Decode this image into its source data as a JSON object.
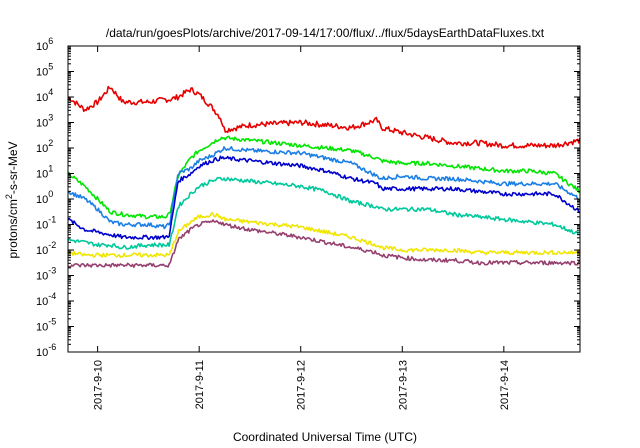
{
  "chart_data": {
    "type": "line",
    "title": "/data/run/goesPlots/archive/2017-09-14/17:00/flux/../flux/5daysEarthDataFluxes.txt",
    "xlabel": "Coordinated Universal Time (UTC)",
    "ylabel": {
      "prefix": "protons/cm",
      "superscript": "2",
      "suffix": "-s-sr-MeV"
    },
    "yscale": "log",
    "ylim_exponents": [
      -6,
      6
    ],
    "y_ticks": [
      {
        "base": "10",
        "exp": "6"
      },
      {
        "base": "10",
        "exp": "5"
      },
      {
        "base": "10",
        "exp": "4"
      },
      {
        "base": "10",
        "exp": "3"
      },
      {
        "base": "10",
        "exp": "2"
      },
      {
        "base": "10",
        "exp": "1"
      },
      {
        "base": "10",
        "exp": "0"
      },
      {
        "base": "10",
        "exp": "-1"
      },
      {
        "base": "10",
        "exp": "-2"
      },
      {
        "base": "10",
        "exp": "-3"
      },
      {
        "base": "10",
        "exp": "-4"
      },
      {
        "base": "10",
        "exp": "-5"
      },
      {
        "base": "10",
        "exp": "-6"
      }
    ],
    "x_range_days": [
      "2017-09-09T17:00",
      "2017-09-14T18:00"
    ],
    "x_tick_labels": [
      "2017-9-10",
      "2017-9-11",
      "2017-9-12",
      "2017-9-13",
      "2017-9-14"
    ],
    "x_tick_dates": [
      "2017-09-10T00:00",
      "2017-09-11T00:00",
      "2017-09-12T00:00",
      "2017-09-13T00:00",
      "2017-09-14T00:00"
    ],
    "x": [
      "2017-09-09T17:00",
      "2017-09-09T21:00",
      "2017-09-10T00:00",
      "2017-09-10T03:00",
      "2017-09-10T06:00",
      "2017-09-10T12:00",
      "2017-09-10T16:00",
      "2017-09-10T17:00",
      "2017-09-10T19:00",
      "2017-09-10T22:00",
      "2017-09-11T00:00",
      "2017-09-11T03:00",
      "2017-09-11T05:00",
      "2017-09-11T06:00",
      "2017-09-11T12:00",
      "2017-09-12T00:00",
      "2017-09-12T06:00",
      "2017-09-12T12:00",
      "2017-09-12T18:00",
      "2017-09-12T19:00",
      "2017-09-13T00:00",
      "2017-09-13T06:00",
      "2017-09-13T12:00",
      "2017-09-13T18:00",
      "2017-09-14T00:00",
      "2017-09-14T06:00",
      "2017-09-14T12:00",
      "2017-09-14T18:00"
    ],
    "series": [
      {
        "color": "#e60000",
        "log10_values": [
          4.0,
          3.5,
          3.8,
          4.4,
          3.8,
          3.8,
          3.9,
          3.9,
          4.0,
          4.3,
          4.1,
          3.6,
          3.2,
          2.7,
          2.9,
          3.0,
          2.9,
          2.8,
          3.1,
          2.8,
          2.6,
          2.4,
          2.2,
          2.2,
          2.1,
          2.1,
          2.1,
          2.3
        ]
      },
      {
        "color": "#00e600",
        "log10_values": [
          1.0,
          0.5,
          0.0,
          -0.5,
          -0.6,
          -0.7,
          -0.7,
          -0.6,
          0.9,
          1.6,
          1.9,
          2.2,
          2.4,
          2.4,
          2.3,
          2.1,
          2.0,
          1.9,
          1.6,
          1.5,
          1.4,
          1.4,
          1.3,
          1.2,
          1.1,
          1.1,
          1.0,
          0.3
        ]
      },
      {
        "color": "#1c7fe6",
        "log10_values": [
          0.3,
          0.0,
          -0.4,
          -0.9,
          -1.0,
          -1.0,
          -1.1,
          -1.0,
          1.0,
          1.2,
          1.5,
          1.7,
          1.9,
          2.0,
          1.9,
          1.8,
          1.6,
          1.4,
          0.9,
          0.8,
          0.9,
          0.8,
          0.8,
          0.7,
          0.6,
          0.6,
          0.6,
          0.0
        ]
      },
      {
        "color": "#0000cc",
        "log10_values": [
          -0.8,
          -1.2,
          -1.3,
          -1.4,
          -1.5,
          -1.5,
          -1.5,
          -1.4,
          0.7,
          1.0,
          1.3,
          1.5,
          1.6,
          1.6,
          1.5,
          1.3,
          1.1,
          0.8,
          0.6,
          0.4,
          0.4,
          0.4,
          0.4,
          0.3,
          0.2,
          0.2,
          0.2,
          -0.5
        ]
      },
      {
        "color": "#00c89b",
        "log10_values": [
          -1.6,
          -1.7,
          -1.8,
          -1.8,
          -1.9,
          -1.8,
          -1.8,
          -1.8,
          -0.3,
          0.2,
          0.5,
          0.7,
          0.8,
          0.8,
          0.7,
          0.5,
          0.3,
          -0.1,
          -0.3,
          -0.4,
          -0.4,
          -0.4,
          -0.6,
          -0.7,
          -0.8,
          -0.9,
          -1.0,
          -1.4
        ]
      },
      {
        "color": "#f0e600",
        "log10_values": [
          -2.1,
          -2.2,
          -2.2,
          -2.2,
          -2.2,
          -2.2,
          -2.2,
          -2.2,
          -1.3,
          -0.9,
          -0.7,
          -0.6,
          -0.7,
          -0.8,
          -0.9,
          -1.1,
          -1.3,
          -1.5,
          -1.8,
          -1.9,
          -2.0,
          -2.0,
          -2.0,
          -2.1,
          -2.1,
          -2.1,
          -2.1,
          -2.1
        ]
      },
      {
        "color": "#95406f",
        "log10_values": [
          -2.6,
          -2.6,
          -2.6,
          -2.6,
          -2.6,
          -2.6,
          -2.6,
          -2.6,
          -1.6,
          -1.2,
          -1.0,
          -0.9,
          -0.9,
          -1.0,
          -1.2,
          -1.5,
          -1.7,
          -1.9,
          -2.1,
          -2.2,
          -2.3,
          -2.4,
          -2.4,
          -2.5,
          -2.5,
          -2.5,
          -2.5,
          -2.5
        ]
      }
    ]
  }
}
